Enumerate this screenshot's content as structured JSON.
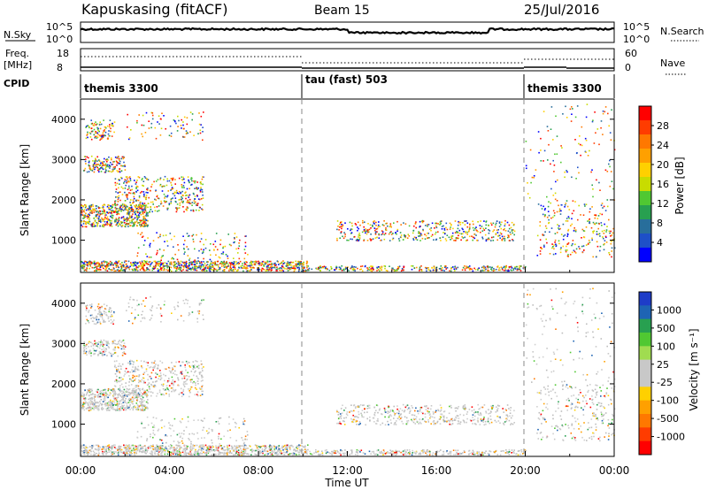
{
  "header": {
    "station": "Kapuskasing (fitACF)",
    "beam": "Beam 15",
    "date": "25/Jul/2016"
  },
  "strips": {
    "nsky_label": "N.Sky",
    "nsky_ticks": [
      "10^5",
      "10^0"
    ],
    "nsky_right_ticks": [
      "10^5",
      "10^0"
    ],
    "nsearch_label": "N.Search",
    "freq_label_1": "Freq.",
    "freq_label_2": "[MHz]",
    "freq_ticks": [
      "18",
      "8"
    ],
    "nave_ticks": [
      "60",
      "0"
    ],
    "nave_label": "Nave",
    "cpid_label": "CPID",
    "cpid_segments": [
      "themis 3300",
      "tau (fast) 503",
      "themis 3300"
    ]
  },
  "chart_data": [
    {
      "type": "heatmap",
      "title": "",
      "ylabel": "Slant Range [km]",
      "ylim": [
        200,
        4500
      ],
      "yticks": [
        "1000",
        "2000",
        "3000",
        "4000"
      ],
      "colorbar_label": "Power [dB]",
      "colorbar_ticks": [
        "28",
        "24",
        "20",
        "16",
        "12",
        "8",
        "4"
      ],
      "colorbar_colors": [
        "#ff0000",
        "#ff3c00",
        "#ff7800",
        "#ffa000",
        "#ffd000",
        "#c8dc00",
        "#50c832",
        "#28a050",
        "#286e9b",
        "#1e50c8",
        "#0000ff"
      ]
    },
    {
      "type": "heatmap",
      "title": "",
      "ylabel": "Slant Range [km]",
      "ylim": [
        200,
        4500
      ],
      "yticks": [
        "1000",
        "2000",
        "3000",
        "4000"
      ],
      "xlabel": "Time UT",
      "xticks": [
        "00:00",
        "04:00",
        "08:00",
        "12:00",
        "16:00",
        "20:00",
        "00:00"
      ],
      "colorbar_label": "Velocity [m s⁻¹]",
      "colorbar_ticks": [
        "1000",
        "500",
        "100",
        "25",
        "-25",
        "-100",
        "-500",
        "-1000"
      ],
      "colorbar_colors": [
        "#1e3cc8",
        "#1e64b4",
        "#28a050",
        "#50c832",
        "#a0dc50",
        "#c8c8c8",
        "#c8c8c8",
        "#ffd000",
        "#ffa000",
        "#ff7800",
        "#ff3c00",
        "#ff0000"
      ]
    }
  ],
  "scatter_colors": {
    "power": [
      "#0000ff",
      "#1e50c8",
      "#286e9b",
      "#28a050",
      "#50c832",
      "#c8dc00",
      "#ffd000",
      "#ffa000",
      "#ff7800",
      "#ff3c00",
      "#ff0000"
    ],
    "velocity": [
      "#c8c8c8",
      "#bdbdbd",
      "#d0d0d0",
      "#50c832",
      "#28a050",
      "#ffd000",
      "#ffa000",
      "#ff7800",
      "#ff0000",
      "#1e64b4"
    ]
  }
}
